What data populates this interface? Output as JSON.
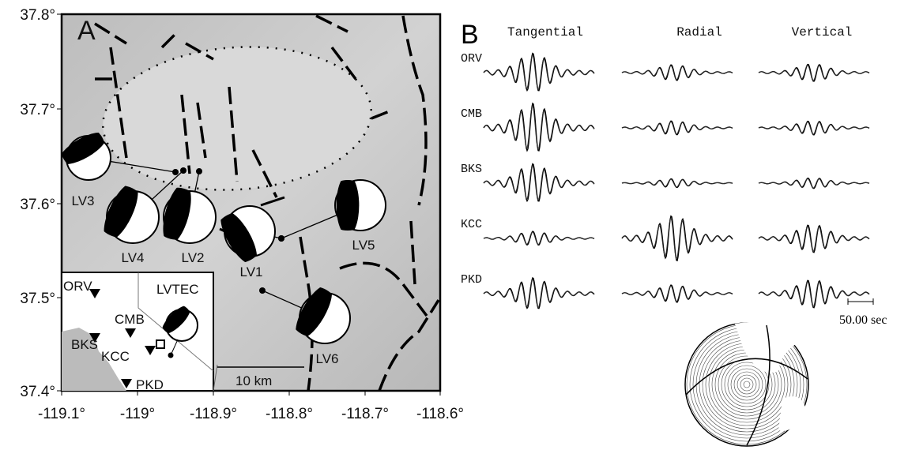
{
  "panel_a": {
    "label": "A",
    "y_ticks": [
      "37.8°",
      "37.7°",
      "37.6°",
      "37.5°",
      "37.4°"
    ],
    "x_ticks": [
      "-119.1°",
      "-119°",
      "-118.9°",
      "-118.8°",
      "-118.7°",
      "-118.6°"
    ],
    "events": [
      "LV3",
      "LV4",
      "LV2",
      "LV1",
      "LV5",
      "LV6"
    ],
    "inset": {
      "stations": [
        "ORV",
        "CMB",
        "BKS",
        "KCC",
        "PKD"
      ],
      "event": "LVTEC"
    },
    "scale_bar": "10 km"
  },
  "panel_b": {
    "label": "B",
    "columns": [
      "Tangential",
      "Radial",
      "Vertical"
    ],
    "stations": [
      "ORV",
      "CMB",
      "BKS",
      "KCC",
      "PKD"
    ],
    "time_scale": "50.00 sec"
  }
}
